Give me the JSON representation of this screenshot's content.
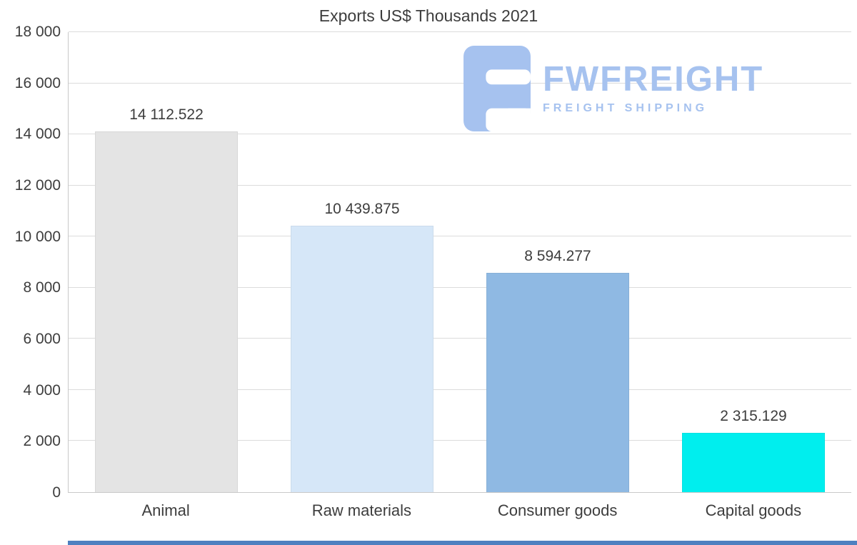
{
  "title": "Exports US$ Thousands 2021",
  "watermark": {
    "brand": "FWFREIGHT",
    "tagline": "FREIGHT SHIPPING",
    "color": "#a6c2ef"
  },
  "chart_data": {
    "type": "bar",
    "title": "Exports US$ Thousands 2021",
    "categories": [
      "Animal",
      "Raw materials",
      "Consumer goods",
      "Capital goods"
    ],
    "values": [
      14112.522,
      10439.875,
      8594.277,
      2315.129
    ],
    "value_labels": [
      "14 112.522",
      "10 439.875",
      "8 594.277",
      "2 315.129"
    ],
    "bar_colors": [
      "#e4e4e4",
      "#d6e7f8",
      "#8fb9e3",
      "#00eeee"
    ],
    "xlabel": "",
    "ylabel": "",
    "ylim": [
      0,
      18000
    ],
    "ytick_interval": 2000,
    "ytick_labels": [
      "0",
      "2 000",
      "4 000",
      "6 000",
      "8 000",
      "10 000",
      "12 000",
      "14 000",
      "16 000",
      "18 000"
    ],
    "grid": true,
    "legend": false
  },
  "colors": {
    "background": "#ffffff",
    "grid": "#dcdcdc",
    "axis": "#c9c9c9",
    "text": "#3d3d3d",
    "bottom_strip": "#4e80c0"
  }
}
